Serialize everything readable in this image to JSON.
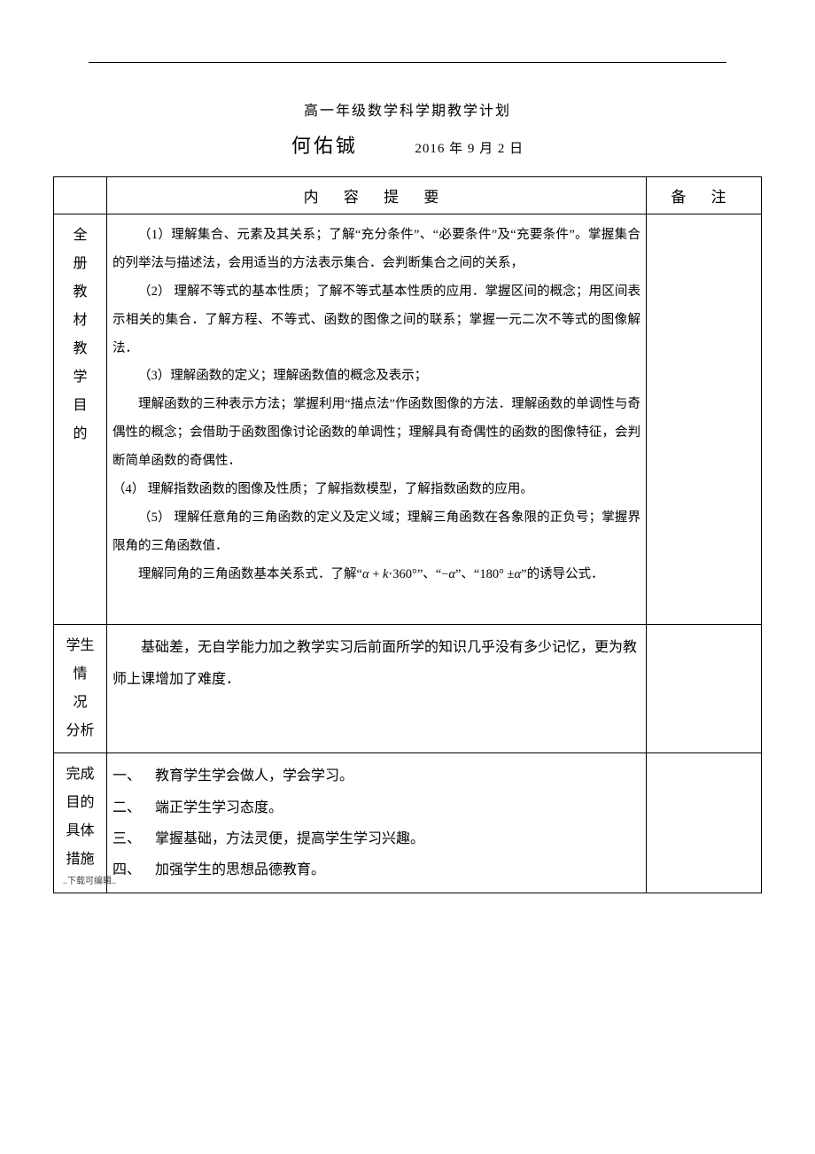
{
  "header": {
    "doc_title": "高一年级数学科学期教学计划",
    "author": "何佑铖",
    "date": "2016 年 9 月 2  日"
  },
  "table": {
    "head_content": "内 容 提 要",
    "head_notes": "备 注",
    "row1_label_chars": [
      "全",
      "册",
      "教",
      "材",
      "教",
      "学",
      "目",
      "的"
    ],
    "row1_paras": [
      "（1）理解集合、元素及其关系；了解“充分条件”、“必要条件”及“充要条件”。掌握集合的列举法与描述法，会用适当的方法表示集合．会判断集合之间的关系，",
      "（2） 理解不等式的基本性质；了解不等式基本性质的应用．掌握区间的概念；用区间表示相关的集合．了解方程、不等式、函数的图像之间的联系；掌握一元二次不等式的图像解法．",
      "（3）理解函数的定义；理解函数值的概念及表示；",
      "理解函数的三种表示方法；掌握利用“描点法”作函数图像的方法．理解函数的单调性与奇偶性的概念；会借助于函数图像讨论函数的单调性；理解具有奇偶性的函数的图像特征，会判断简单函数的奇偶性．",
      "（4） 理解指数函数的图像及性质；了解指数模型，了解指数函数的应用。",
      "（5） 理解任意角的三角函数的定义及定义域；理解三角函数在各象限的正负号；掌握界限角的三角函数值．",
      "理解同角的三角函数基本关系式．了解“ α + k·360° ”、“ −α ”、“ 180° ±α ” 的诱导公式．"
    ],
    "row2_label_chars": [
      "学生",
      "情",
      "况",
      "分析"
    ],
    "row2_text": "基础差，无自学能力加之教学实习后前面所学的知识几乎没有多少记忆，更为教师上课增加了难度．",
    "row3_label_chars": [
      "完成",
      "目的",
      "具体",
      "措施"
    ],
    "row3_items": [
      {
        "num": "一、",
        "text": "教育学生学会做人，学会学习。"
      },
      {
        "num": "二、",
        "text": "端正学生学习态度。"
      },
      {
        "num": "三、",
        "text": "掌握基础，方法灵便，提高学生学习兴趣。"
      },
      {
        "num": "四、",
        "text": "加强学生的思想品德教育。"
      }
    ]
  },
  "footer": "..下载可编辑.."
}
